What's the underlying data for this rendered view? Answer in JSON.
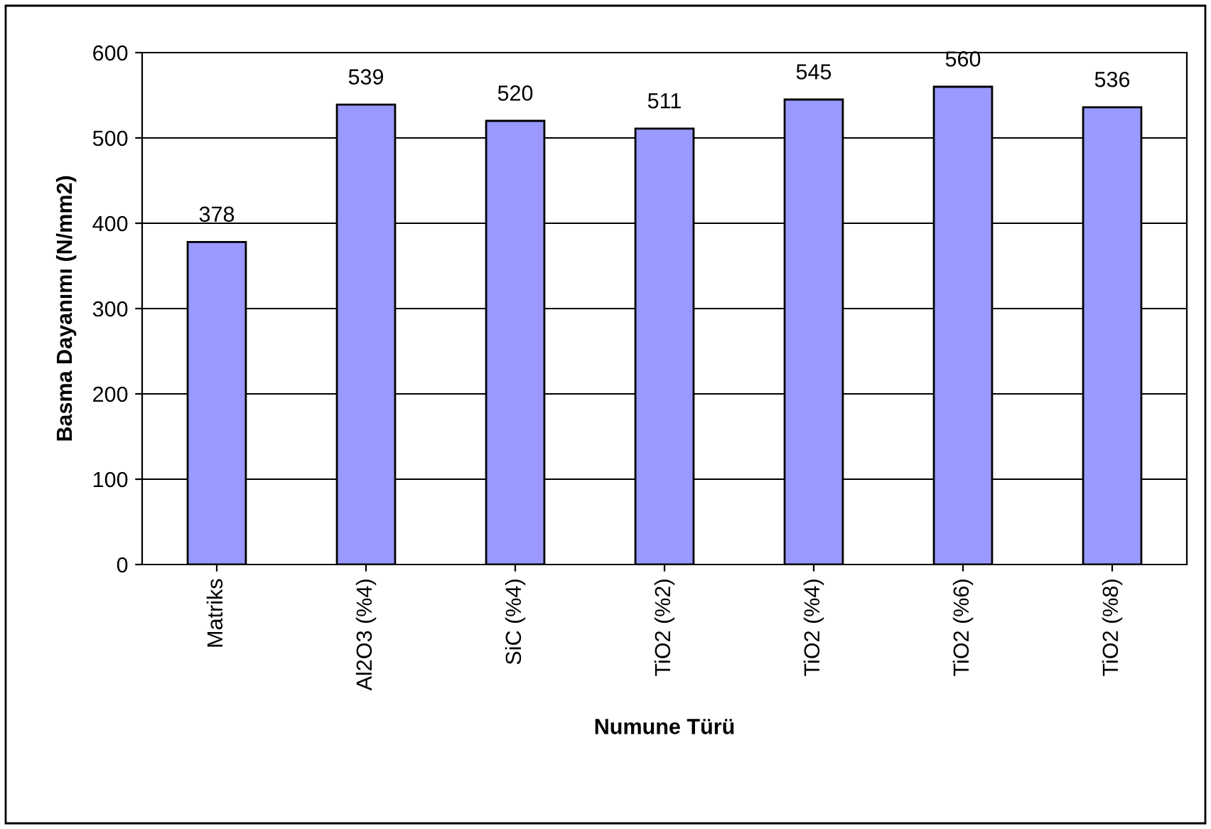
{
  "chart_data": {
    "type": "bar",
    "xlabel": "Numune Türü",
    "ylabel": "Basma Dayanımı (N/mm2)",
    "categories": [
      "Matriks",
      "Al2O3 (%4)",
      "SiC (%4)",
      "TiO2 (%2)",
      "TiO2 (%4)",
      "TiO2 (%6)",
      "TiO2 (%8)"
    ],
    "values": [
      378,
      539,
      520,
      511,
      545,
      560,
      536
    ],
    "color": "#9999ff",
    "ylim": [
      0,
      600
    ],
    "yticks": [
      0,
      100,
      200,
      300,
      400,
      500,
      600
    ],
    "grid": "y",
    "data_labels": true,
    "legend": false
  }
}
